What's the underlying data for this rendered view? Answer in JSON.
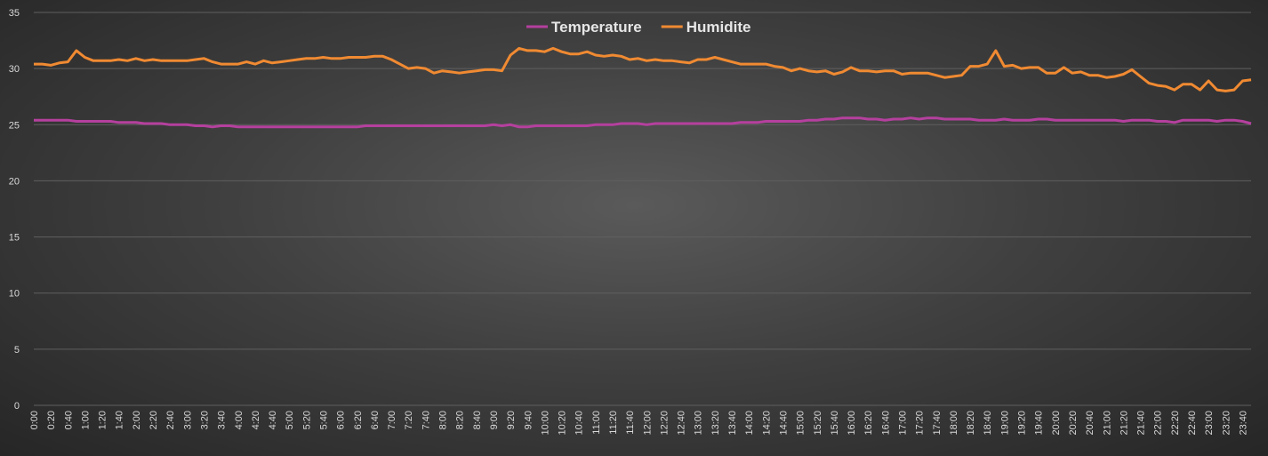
{
  "chart_data": {
    "type": "line",
    "legend": "top",
    "grid": true,
    "ylim": [
      0,
      35
    ],
    "yticks": [
      0,
      5,
      10,
      15,
      20,
      25,
      30,
      35
    ],
    "categories": [
      "0:00",
      null,
      "0:20",
      null,
      "0:40",
      null,
      "1:00",
      null,
      "1:20",
      null,
      "1:40",
      null,
      "2:00",
      null,
      "2:20",
      null,
      "2:40",
      null,
      "3:00",
      null,
      "3:20",
      null,
      "3:40",
      null,
      "4:00",
      null,
      "4:20",
      null,
      "4:40",
      null,
      "5:00",
      null,
      "5:20",
      null,
      "5:40",
      null,
      "6:00",
      null,
      "6:20",
      null,
      "6:40",
      null,
      "7:00",
      null,
      "7:20",
      null,
      "7:40",
      null,
      "8:00",
      null,
      "8:20",
      null,
      "8:40",
      null,
      "9:00",
      null,
      "9:20",
      null,
      "9:40",
      null,
      "10:00",
      null,
      "10:20",
      null,
      "10:40",
      null,
      "11:00",
      null,
      "11:20",
      null,
      "11:40",
      null,
      "12:00",
      null,
      "12:20",
      null,
      "12:40",
      null,
      "13:00",
      null,
      "13:20",
      null,
      "13:40",
      null,
      "14:00",
      null,
      "14:20",
      null,
      "14:40",
      null,
      "15:00",
      null,
      "15:20",
      null,
      "15:40",
      null,
      "16:00",
      null,
      "16:20",
      null,
      "16:40",
      null,
      "17:00",
      null,
      "17:20",
      null,
      "17:40",
      null,
      "18:00",
      null,
      "18:20",
      null,
      "18:40",
      null,
      "19:00",
      null,
      "19:20",
      null,
      "19:40",
      null,
      "20:00",
      null,
      "20:20",
      null,
      "20:40",
      null,
      "21:00",
      null,
      "21:20",
      null,
      "21:40",
      null,
      "22:00",
      null,
      "22:20",
      null,
      "22:40",
      null,
      "23:00",
      null,
      "23:20",
      null,
      "23:40",
      null
    ],
    "series": [
      {
        "name": "Temperature",
        "color": "#b5409e",
        "values": [
          25.4,
          25.4,
          25.4,
          25.4,
          25.4,
          25.3,
          25.3,
          25.3,
          25.3,
          25.3,
          25.2,
          25.2,
          25.2,
          25.1,
          25.1,
          25.1,
          25.0,
          25.0,
          25.0,
          24.9,
          24.9,
          24.8,
          24.9,
          24.9,
          24.8,
          24.8,
          24.8,
          24.8,
          24.8,
          24.8,
          24.8,
          24.8,
          24.8,
          24.8,
          24.8,
          24.8,
          24.8,
          24.8,
          24.8,
          24.9,
          24.9,
          24.9,
          24.9,
          24.9,
          24.9,
          24.9,
          24.9,
          24.9,
          24.9,
          24.9,
          24.9,
          24.9,
          24.9,
          24.9,
          25.0,
          24.9,
          25.0,
          24.8,
          24.8,
          24.9,
          24.9,
          24.9,
          24.9,
          24.9,
          24.9,
          24.9,
          25.0,
          25.0,
          25.0,
          25.1,
          25.1,
          25.1,
          25.0,
          25.1,
          25.1,
          25.1,
          25.1,
          25.1,
          25.1,
          25.1,
          25.1,
          25.1,
          25.1,
          25.2,
          25.2,
          25.2,
          25.3,
          25.3,
          25.3,
          25.3,
          25.3,
          25.4,
          25.4,
          25.5,
          25.5,
          25.6,
          25.6,
          25.6,
          25.5,
          25.5,
          25.4,
          25.5,
          25.5,
          25.6,
          25.5,
          25.6,
          25.6,
          25.5,
          25.5,
          25.5,
          25.5,
          25.4,
          25.4,
          25.4,
          25.5,
          25.4,
          25.4,
          25.4,
          25.5,
          25.5,
          25.4,
          25.4,
          25.4,
          25.4,
          25.4,
          25.4,
          25.4,
          25.4,
          25.3,
          25.4,
          25.4,
          25.4,
          25.3,
          25.3,
          25.2,
          25.4,
          25.4,
          25.4,
          25.4,
          25.3,
          25.4,
          25.4,
          25.3,
          25.1
        ]
      },
      {
        "name": "Humidite",
        "color": "#f08a32",
        "values": [
          30.4,
          30.4,
          30.3,
          30.5,
          30.6,
          31.6,
          31.0,
          30.7,
          30.7,
          30.7,
          30.8,
          30.7,
          30.9,
          30.7,
          30.8,
          30.7,
          30.7,
          30.7,
          30.7,
          30.8,
          30.9,
          30.6,
          30.4,
          30.4,
          30.4,
          30.6,
          30.4,
          30.7,
          30.5,
          30.6,
          30.7,
          30.8,
          30.9,
          30.9,
          31.0,
          30.9,
          30.9,
          31.0,
          31.0,
          31.0,
          31.1,
          31.1,
          30.8,
          30.4,
          30.0,
          30.1,
          30.0,
          29.6,
          29.8,
          29.7,
          29.6,
          29.7,
          29.8,
          29.9,
          29.9,
          29.8,
          31.2,
          31.8,
          31.6,
          31.6,
          31.5,
          31.8,
          31.5,
          31.3,
          31.3,
          31.5,
          31.2,
          31.1,
          31.2,
          31.1,
          30.8,
          30.9,
          30.7,
          30.8,
          30.7,
          30.7,
          30.6,
          30.5,
          30.8,
          30.8,
          31.0,
          30.8,
          30.6,
          30.4,
          30.4,
          30.4,
          30.4,
          30.2,
          30.1,
          29.8,
          30.0,
          29.8,
          29.7,
          29.8,
          29.5,
          29.7,
          30.1,
          29.8,
          29.8,
          29.7,
          29.8,
          29.8,
          29.5,
          29.6,
          29.6,
          29.6,
          29.4,
          29.2,
          29.3,
          29.4,
          30.2,
          30.2,
          30.4,
          31.6,
          30.2,
          30.3,
          30.0,
          30.1,
          30.1,
          29.6,
          29.6,
          30.1,
          29.6,
          29.7,
          29.4,
          29.4,
          29.2,
          29.3,
          29.5,
          29.9,
          29.3,
          28.7,
          28.5,
          28.4,
          28.1,
          28.6,
          28.6,
          28.1,
          28.9,
          28.1,
          28.0,
          28.1,
          28.9,
          29.0
        ]
      }
    ]
  }
}
